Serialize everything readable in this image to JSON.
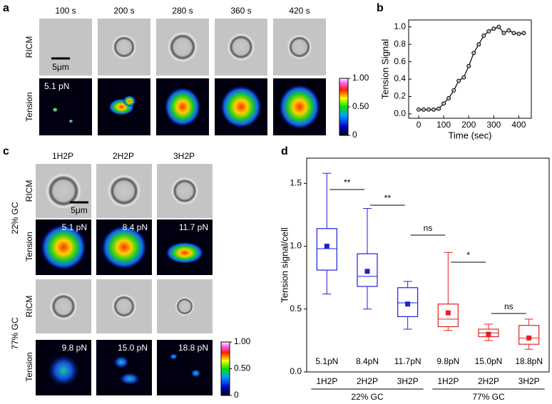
{
  "panels": {
    "a": {
      "letter": "a",
      "times": [
        "100 s",
        "200 s",
        "280 s",
        "360 s",
        "420 s"
      ],
      "rows": [
        "RICM",
        "Tension"
      ],
      "scale_bar": "5μm",
      "force": "5.1 pN",
      "colorbar_ticks": [
        {
          "value": 1,
          "label": "1.00"
        },
        {
          "value": 0.5,
          "label": "0.50"
        },
        0
      ]
    },
    "b": {
      "letter": "b"
    },
    "c": {
      "letter": "c",
      "columns": [
        "1H2P",
        "2H2P",
        "3H2P"
      ],
      "rows": [
        "RICM",
        "Tension"
      ],
      "groups": [
        "22% GC",
        "77% GC"
      ],
      "scale_bar": "5μm",
      "forces": [
        "5.1 pN",
        "8.4 pN",
        "11.7 pN",
        "9.8 pN",
        "15.0 pN",
        "18.8 pN"
      ],
      "colorbar_ticks": [
        {
          "value": 1,
          "label": "1.00"
        },
        {
          "value": 0.5,
          "label": "0.50"
        },
        0
      ]
    },
    "d": {
      "letter": "d"
    }
  },
  "chart_data": [
    {
      "type": "line",
      "xlabel": "Time (sec)",
      "ylabel": "Tension Signal",
      "color": "#000000",
      "x": [
        0,
        20,
        40,
        60,
        80,
        100,
        120,
        140,
        160,
        180,
        200,
        220,
        240,
        260,
        280,
        300,
        320,
        340,
        360,
        380,
        400,
        420
      ],
      "values": [
        0.05,
        0.05,
        0.05,
        0.05,
        0.06,
        0.12,
        0.18,
        0.27,
        0.38,
        0.42,
        0.55,
        0.7,
        0.8,
        0.9,
        0.95,
        0.98,
        1.0,
        0.93,
        0.96,
        0.93,
        0.92,
        0.93
      ],
      "xlim": [
        -40,
        450
      ],
      "xticks": [
        0,
        100,
        200,
        300,
        400
      ],
      "ylim": [
        -0.05,
        1.08
      ],
      "yticks": [
        {
          "value": 0,
          "label": "0.0"
        },
        0.2,
        0.4,
        0.6,
        0.8,
        {
          "value": 1,
          "label": "1.0"
        }
      ]
    },
    {
      "type": "box",
      "ylabel": "Tension signal/cell",
      "categories": [
        "1H2P",
        "2H2P",
        "3H2P",
        "1H2P",
        "2H2P",
        "3H2P"
      ],
      "groups": [
        "22% GC",
        "77% GC"
      ],
      "box_labels": [
        "5.1pN",
        "8.4pN",
        "11.7pN",
        "9.8pN",
        "15.0pN",
        "18.8pN"
      ],
      "colors": [
        "#1f1fdc",
        "#1f1fdc",
        "#1f1fdc",
        "#e32222",
        "#e32222",
        "#e32222"
      ],
      "min": [
        0.62,
        0.5,
        0.34,
        0.33,
        0.25,
        0.18
      ],
      "q1": [
        0.81,
        0.68,
        0.44,
        0.36,
        0.28,
        0.22
      ],
      "median": [
        0.98,
        0.76,
        0.55,
        0.42,
        0.31,
        0.27
      ],
      "q3": [
        1.14,
        0.94,
        0.67,
        0.54,
        0.34,
        0.37
      ],
      "max": [
        1.58,
        1.3,
        0.72,
        0.95,
        0.38,
        0.42
      ],
      "mean": [
        1.0,
        0.8,
        0.54,
        0.47,
        0.3,
        0.27
      ],
      "significance": [
        "**",
        "**",
        "ns",
        "*",
        "ns"
      ],
      "ylim": [
        0,
        1.7
      ],
      "yticks": [
        {
          "value": 0,
          "label": "0.0"
        },
        0.5,
        {
          "value": 1,
          "label": "1.0"
        },
        1.5
      ]
    }
  ]
}
